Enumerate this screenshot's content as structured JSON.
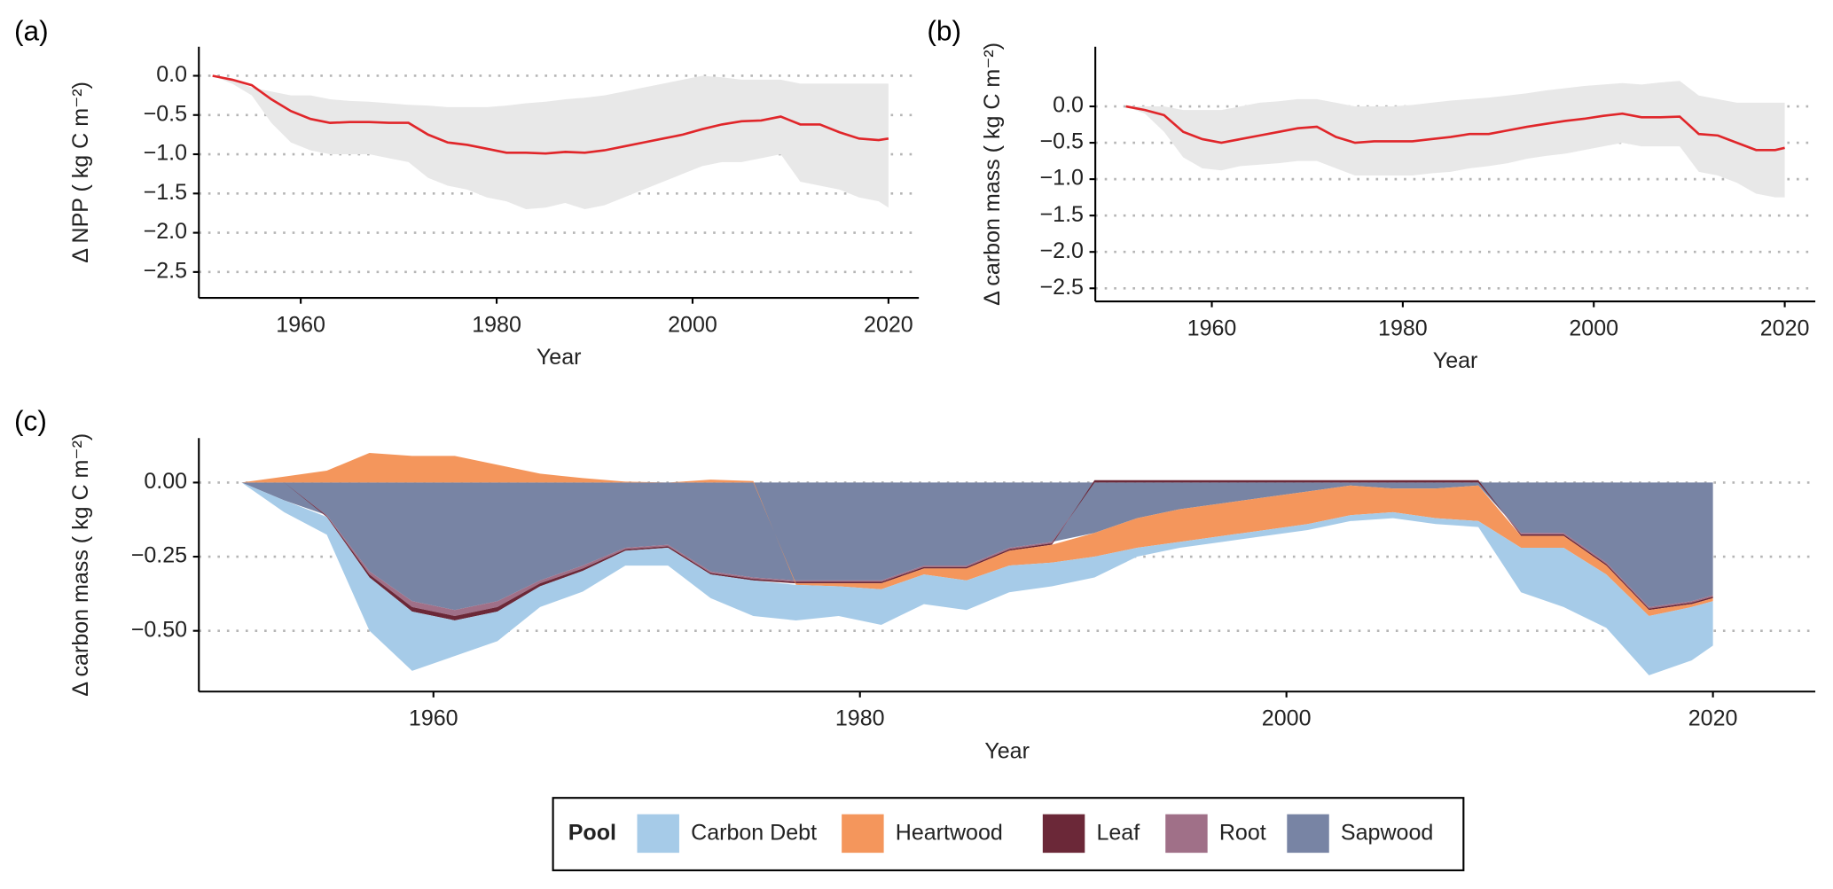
{
  "chart_data": [
    {
      "type": "line",
      "label": "(a)",
      "xlabel": "Year",
      "ylabel": "Δ NPP ( kg C m⁻²)",
      "xlim": [
        1949.6,
        2023.1
      ],
      "ylim": [
        -2.83,
        0.37
      ],
      "xticks": [
        1960,
        1980,
        2000,
        2020
      ],
      "yticks": [
        {
          "value": 0,
          "label": "0.0"
        },
        {
          "value": -0.5,
          "label": "−0.5"
        },
        {
          "value": -1,
          "label": "−1.0"
        },
        {
          "value": -1.5,
          "label": "−1.5"
        },
        {
          "value": -2,
          "label": "−2.0"
        },
        {
          "value": -2.5,
          "label": "−2.5"
        }
      ],
      "grid": true,
      "color": "#e0262a",
      "band_color": "#e8e8e8",
      "x": [
        1951,
        1953,
        1955,
        1957,
        1959,
        1961,
        1963,
        1965,
        1967,
        1969,
        1971,
        1973,
        1975,
        1977,
        1979,
        1981,
        1983,
        1985,
        1987,
        1989,
        1991,
        1993,
        1995,
        1997,
        1999,
        2001,
        2003,
        2005,
        2007,
        2009,
        2011,
        2013,
        2015,
        2017,
        2019,
        2020
      ],
      "values": [
        0,
        -0.05,
        -0.12,
        -0.3,
        -0.45,
        -0.55,
        -0.6,
        -0.59,
        -0.59,
        -0.6,
        -0.6,
        -0.75,
        -0.85,
        -0.88,
        -0.93,
        -0.98,
        -0.98,
        -0.99,
        -0.97,
        -0.98,
        -0.95,
        -0.9,
        -0.85,
        -0.8,
        -0.75,
        -0.68,
        -0.62,
        -0.58,
        -0.57,
        -0.52,
        -0.62,
        -0.62,
        -0.72,
        -0.8,
        -0.82,
        -0.8
      ],
      "lower": [
        0,
        -0.1,
        -0.25,
        -0.6,
        -0.85,
        -0.95,
        -1,
        -1,
        -1,
        -1.05,
        -1.1,
        -1.3,
        -1.4,
        -1.45,
        -1.55,
        -1.6,
        -1.7,
        -1.68,
        -1.62,
        -1.7,
        -1.65,
        -1.55,
        -1.45,
        -1.35,
        -1.25,
        -1.15,
        -1.1,
        -1.1,
        -1.05,
        -1,
        -1.35,
        -1.4,
        -1.45,
        -1.55,
        -1.6,
        -1.68
      ],
      "upper": [
        0,
        -0.05,
        -0.15,
        -0.2,
        -0.25,
        -0.25,
        -0.3,
        -0.32,
        -0.33,
        -0.35,
        -0.37,
        -0.38,
        -0.4,
        -0.4,
        -0.4,
        -0.38,
        -0.35,
        -0.33,
        -0.3,
        -0.28,
        -0.25,
        -0.2,
        -0.15,
        -0.1,
        -0.05,
        0,
        -0.02,
        -0.05,
        -0.05,
        -0.05,
        -0.1,
        -0.1,
        -0.1,
        -0.1,
        -0.1,
        -0.1
      ]
    },
    {
      "type": "line",
      "label": "(b)",
      "xlabel": "Year",
      "ylabel": "Δ carbon mass ( kg C m⁻²)",
      "xlim": [
        1947.8,
        2023.2
      ],
      "ylim": [
        -2.68,
        0.82
      ],
      "xticks": [
        1960,
        1980,
        2000,
        2020
      ],
      "yticks": [
        {
          "value": 0,
          "label": "0.0"
        },
        {
          "value": -0.5,
          "label": "−0.5"
        },
        {
          "value": -1,
          "label": "−1.0"
        },
        {
          "value": -1.5,
          "label": "−1.5"
        },
        {
          "value": -2,
          "label": "−2.0"
        },
        {
          "value": -2.5,
          "label": "−2.5"
        }
      ],
      "grid": true,
      "color": "#e0262a",
      "band_color": "#e8e8e8",
      "x": [
        1951,
        1953,
        1955,
        1957,
        1959,
        1961,
        1963,
        1965,
        1967,
        1969,
        1971,
        1973,
        1975,
        1977,
        1979,
        1981,
        1983,
        1985,
        1987,
        1989,
        1991,
        1993,
        1995,
        1997,
        1999,
        2001,
        2003,
        2005,
        2007,
        2009,
        2011,
        2013,
        2015,
        2017,
        2019,
        2020
      ],
      "values": [
        0,
        -0.05,
        -0.12,
        -0.35,
        -0.45,
        -0.5,
        -0.45,
        -0.4,
        -0.35,
        -0.3,
        -0.28,
        -0.42,
        -0.5,
        -0.48,
        -0.48,
        -0.48,
        -0.45,
        -0.42,
        -0.38,
        -0.38,
        -0.33,
        -0.28,
        -0.24,
        -0.2,
        -0.17,
        -0.13,
        -0.1,
        -0.15,
        -0.15,
        -0.14,
        -0.38,
        -0.4,
        -0.5,
        -0.6,
        -0.6,
        -0.57
      ],
      "lower": [
        0,
        -0.1,
        -0.35,
        -0.7,
        -0.85,
        -0.88,
        -0.82,
        -0.8,
        -0.78,
        -0.75,
        -0.75,
        -0.85,
        -0.95,
        -0.95,
        -0.95,
        -0.95,
        -0.92,
        -0.9,
        -0.85,
        -0.82,
        -0.78,
        -0.72,
        -0.68,
        -0.65,
        -0.6,
        -0.55,
        -0.5,
        -0.55,
        -0.55,
        -0.55,
        -0.9,
        -0.95,
        -1.05,
        -1.2,
        -1.25,
        -1.25
      ],
      "upper": [
        0,
        0,
        0,
        -0.05,
        -0.05,
        -0.05,
        0,
        0.05,
        0.07,
        0.1,
        0.1,
        0.05,
        0,
        0,
        0,
        0.02,
        0.05,
        0.08,
        0.1,
        0.12,
        0.15,
        0.18,
        0.22,
        0.25,
        0.28,
        0.3,
        0.32,
        0.3,
        0.33,
        0.35,
        0.15,
        0.1,
        0.05,
        0.05,
        0.05,
        0.05
      ]
    },
    {
      "type": "area",
      "stacked": true,
      "label": "(c)",
      "xlabel": "Year",
      "ylabel": "Δ carbon mass ( kg C m⁻²)",
      "legend_title": "Pool",
      "xlim": [
        1949,
        2024.8
      ],
      "ylim": [
        -0.705,
        0.15
      ],
      "xticks": [
        1960,
        1980,
        2000,
        2020
      ],
      "yticks": [
        {
          "value": 0,
          "label": "0.00"
        },
        {
          "value": -0.25,
          "label": "−0.25"
        },
        {
          "value": -0.5,
          "label": "−0.50"
        }
      ],
      "grid": true,
      "x": [
        1951,
        1953,
        1955,
        1957,
        1959,
        1961,
        1963,
        1965,
        1967,
        1969,
        1971,
        1973,
        1975,
        1977,
        1979,
        1981,
        1983,
        1985,
        1987,
        1989,
        1991,
        1993,
        1995,
        1997,
        1999,
        2001,
        2003,
        2005,
        2007,
        2009,
        2011,
        2013,
        2015,
        2017,
        2019,
        2020
      ],
      "series": [
        {
          "name": "Carbon Debt",
          "color": "#a6cbe8",
          "values": [
            0,
            -0.04,
            -0.06,
            -0.18,
            -0.2,
            -0.12,
            -0.1,
            -0.07,
            -0.07,
            -0.05,
            -0.06,
            -0.08,
            -0.12,
            -0.12,
            -0.1,
            -0.12,
            -0.1,
            -0.1,
            -0.09,
            -0.08,
            -0.07,
            -0.03,
            -0.02,
            -0.02,
            -0.02,
            -0.02,
            -0.02,
            -0.02,
            -0.02,
            -0.02,
            -0.15,
            -0.2,
            -0.18,
            -0.2,
            -0.18,
            -0.15
          ]
        },
        {
          "name": "Heartwood",
          "color": "#f4965c",
          "values": [
            0,
            0.02,
            0.04,
            0.1,
            0.09,
            0.09,
            0.06,
            0.03,
            0.015,
            0.003,
            0,
            0.01,
            0.005,
            -0.005,
            -0.01,
            -0.02,
            -0.02,
            -0.04,
            -0.05,
            -0.06,
            -0.08,
            -0.1,
            -0.11,
            -0.11,
            -0.11,
            -0.11,
            -0.1,
            -0.08,
            -0.1,
            -0.12,
            -0.04,
            -0.04,
            -0.03,
            -0.02,
            -0.01,
            -0.01
          ]
        },
        {
          "name": "Leaf",
          "color": "#6b2838",
          "values": [
            0,
            0,
            -0.003,
            -0.01,
            -0.015,
            -0.015,
            -0.015,
            -0.01,
            -0.008,
            -0.005,
            -0.005,
            -0.005,
            -0.005,
            -0.005,
            -0.005,
            -0.005,
            -0.005,
            -0.005,
            -0.005,
            -0.005,
            0.008,
            0.008,
            0.008,
            0.008,
            0.008,
            0.008,
            0.008,
            0.008,
            0.008,
            0.008,
            -0.005,
            -0.005,
            -0.005,
            -0.005,
            -0.005,
            -0.005
          ]
        },
        {
          "name": "Root",
          "color": "#a07088",
          "values": [
            0,
            0,
            -0.003,
            -0.01,
            -0.02,
            -0.02,
            -0.02,
            -0.01,
            -0.01,
            -0.005,
            -0.005,
            -0.005,
            -0.005,
            -0.005,
            -0.005,
            -0.005,
            -0.005,
            -0.005,
            -0.005,
            -0.005,
            0,
            0,
            0,
            0,
            0,
            0,
            0,
            0,
            0,
            0,
            -0.005,
            -0.005,
            -0.005,
            -0.005,
            -0.005,
            -0.005
          ]
        },
        {
          "name": "Sapwood",
          "color": "#7884a4",
          "values": [
            0,
            -0.06,
            -0.11,
            -0.3,
            -0.4,
            -0.43,
            -0.4,
            -0.33,
            -0.28,
            -0.22,
            -0.21,
            -0.3,
            -0.32,
            -0.33,
            -0.33,
            -0.33,
            -0.28,
            -0.28,
            -0.22,
            -0.2,
            -0.17,
            -0.12,
            -0.09,
            -0.07,
            -0.05,
            -0.03,
            -0.01,
            -0.02,
            -0.02,
            -0.01,
            -0.17,
            -0.17,
            -0.27,
            -0.42,
            -0.4,
            -0.38
          ]
        }
      ]
    }
  ]
}
